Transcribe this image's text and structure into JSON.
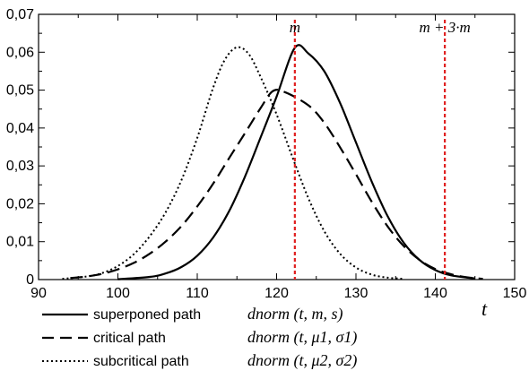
{
  "chart_data": {
    "type": "line",
    "title": "",
    "xlabel": "t",
    "ylabel": "",
    "xlim": [
      90,
      150
    ],
    "ylim": [
      0,
      0.07
    ],
    "grid": false,
    "x_ticks": [
      90,
      100,
      110,
      120,
      130,
      140,
      150
    ],
    "x_tick_labels": [
      "90",
      "100",
      "110",
      "120",
      "130",
      "140",
      "150"
    ],
    "y_ticks": [
      0,
      0.01,
      0.02,
      0.03,
      0.04,
      0.05,
      0.06,
      0.07
    ],
    "y_tick_labels": [
      "0",
      "0,01",
      "0,02",
      "0,03",
      "0,04",
      "0,05",
      "0,06",
      "0,07"
    ],
    "series": [
      {
        "name": "superponed path",
        "formula": "dnorm (t, m, s)",
        "style": "solid",
        "color": "#000000",
        "x": [
          100,
          104,
          106,
          108,
          110,
          112,
          114,
          116,
          118,
          120,
          122.3,
          124,
          126,
          128,
          130,
          132,
          134,
          136,
          138,
          140,
          142,
          145
        ],
        "y": [
          0.0001,
          0.0007,
          0.0016,
          0.0033,
          0.0063,
          0.0111,
          0.018,
          0.0271,
          0.0376,
          0.0483,
          0.0612,
          0.0597,
          0.055,
          0.0466,
          0.0362,
          0.0258,
          0.0167,
          0.0098,
          0.0052,
          0.0025,
          0.0011,
          0.0003
        ]
      },
      {
        "name": "critical path",
        "formula": "dnorm (t, μ1, σ1)",
        "style": "dashed",
        "color": "#000000",
        "x": [
          94,
          96,
          98,
          100,
          102,
          104,
          106,
          108,
          110,
          112,
          114,
          116,
          118,
          119.5,
          121,
          124,
          126,
          128,
          130,
          132,
          134,
          136,
          138,
          140,
          142,
          144,
          146
        ],
        "y": [
          0.0004,
          0.0008,
          0.0015,
          0.0027,
          0.0044,
          0.0068,
          0.01,
          0.0141,
          0.0193,
          0.0253,
          0.032,
          0.0386,
          0.0453,
          0.0497,
          0.0495,
          0.046,
          0.0414,
          0.0349,
          0.0278,
          0.0205,
          0.014,
          0.0089,
          0.0052,
          0.0028,
          0.0014,
          0.0006,
          0.0002
        ]
      },
      {
        "name": "subcritical path",
        "formula": "dnorm (t, μ2, σ2)",
        "style": "dotted",
        "color": "#000000",
        "x": [
          93,
          96,
          98,
          100,
          102,
          104,
          106,
          108,
          110,
          112,
          113.5,
          115,
          116.5,
          118,
          120,
          122,
          124,
          126,
          128,
          130,
          132,
          134,
          136
        ],
        "y": [
          0.0002,
          0.0008,
          0.0017,
          0.0036,
          0.0067,
          0.0114,
          0.0177,
          0.0262,
          0.0374,
          0.0506,
          0.0581,
          0.0613,
          0.0595,
          0.0534,
          0.0436,
          0.0323,
          0.0215,
          0.0128,
          0.0068,
          0.0032,
          0.0013,
          0.0005,
          0.0002
        ]
      }
    ],
    "reference_lines": [
      {
        "label": "m",
        "x": 122.3,
        "color": "#e02020",
        "style": "dotted"
      },
      {
        "label": "m + 3·m",
        "x": 141.2,
        "color": "#e02020",
        "style": "dotted"
      }
    ],
    "legend": {
      "placement": "below",
      "entries": [
        {
          "name": "superponed path",
          "formula_main": "dnorm",
          "formula_args": "(t, m, s)",
          "style": "solid"
        },
        {
          "name": "critical path",
          "formula_main": "dnorm",
          "formula_args": "(t, μ1, σ1)",
          "style": "dashed"
        },
        {
          "name": "subcritical path",
          "formula_main": "dnorm",
          "formula_args": "(t, μ2, σ2)",
          "style": "dotted"
        }
      ]
    }
  }
}
